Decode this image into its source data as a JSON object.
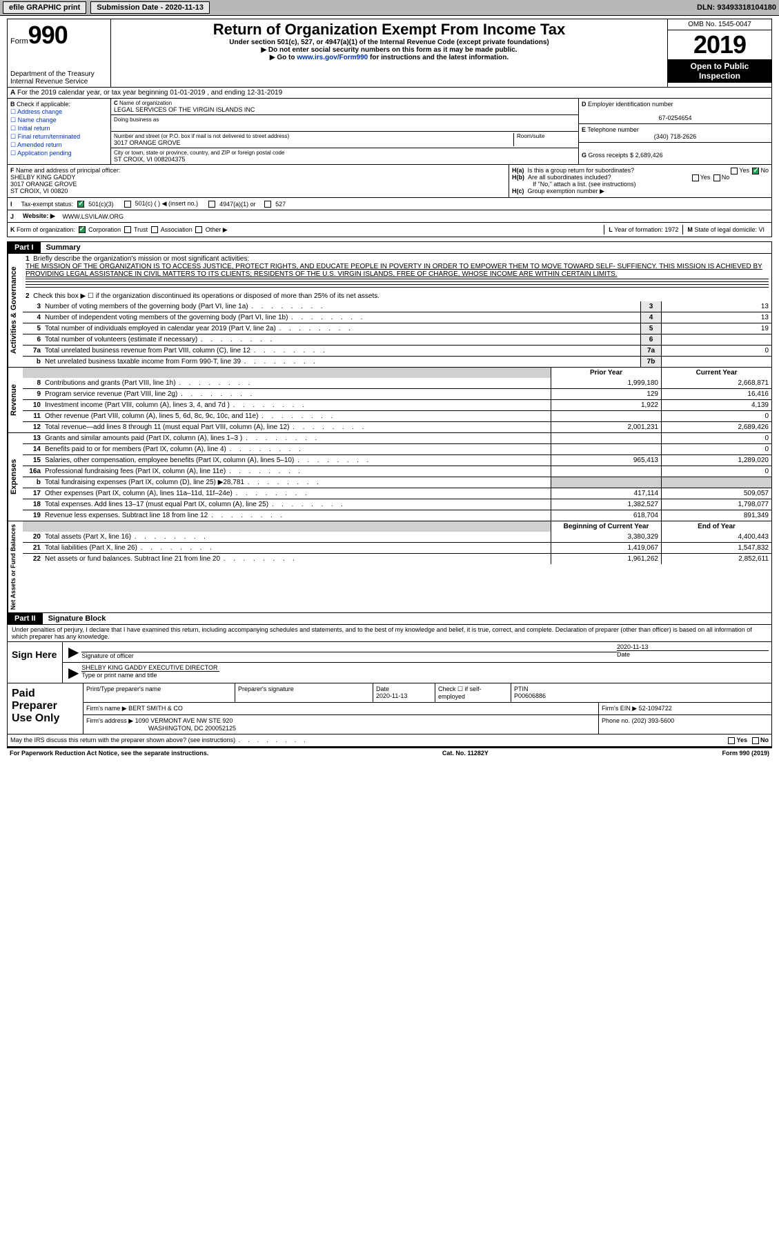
{
  "topbar": {
    "efile": "efile GRAPHIC print",
    "submission_label": "Submission Date - 2020-11-13",
    "dln": "DLN: 93493318104180"
  },
  "header": {
    "form_prefix": "Form",
    "form_number": "990",
    "dept1": "Department of the Treasury",
    "dept2": "Internal Revenue Service",
    "title": "Return of Organization Exempt From Income Tax",
    "subtitle": "Under section 501(c), 527, or 4947(a)(1) of the Internal Revenue Code (except private foundations)",
    "note1": "Do not enter social security numbers on this form as it may be made public.",
    "note2_pre": "Go to ",
    "note2_link": "www.irs.gov/Form990",
    "note2_post": " for instructions and the latest information.",
    "omb": "OMB No. 1545-0047",
    "year": "2019",
    "open": "Open to Public Inspection"
  },
  "A": {
    "text": "For the 2019 calendar year, or tax year beginning 01-01-2019    , and ending 12-31-2019"
  },
  "B": {
    "label": "Check if applicable:",
    "opts": [
      "Address change",
      "Name change",
      "Initial return",
      "Final return/terminated",
      "Amended return",
      "Application pending"
    ]
  },
  "C": {
    "name_label": "Name of organization",
    "name": "LEGAL SERVICES OF THE VIRGIN ISLANDS INC",
    "dba_label": "Doing business as",
    "addr_label": "Number and street (or P.O. box if mail is not delivered to street address)",
    "room_label": "Room/suite",
    "addr": "3017 ORANGE GROVE",
    "city_label": "City or town, state or province, country, and ZIP or foreign postal code",
    "city": "ST CROIX, VI  008204375"
  },
  "D": {
    "label": "Employer identification number",
    "ein": "67-0254654"
  },
  "E": {
    "label": "Telephone number",
    "phone": "(340) 718-2626"
  },
  "G": {
    "label": "Gross receipts $",
    "val": "2,689,426"
  },
  "F": {
    "label": "Name and address of principal officer:",
    "name": "SHELBY KING GADDY",
    "addr1": "3017 ORANGE GROVE",
    "addr2": "ST CROIX, VI  00820"
  },
  "H": {
    "a": "Is this a group return for subordinates?",
    "b": "Are all subordinates included?",
    "b_note": "If \"No,\" attach a list. (see instructions)",
    "c": "Group exemption number ▶",
    "yes": "Yes",
    "no": "No"
  },
  "I": {
    "label": "Tax-exempt status:",
    "o1": "501(c)(3)",
    "o2": "501(c) (  ) ◀ (insert no.)",
    "o3": "4947(a)(1) or",
    "o4": "527"
  },
  "J": {
    "label": "Website: ▶",
    "val": "WWW.LSVILAW.ORG"
  },
  "K": {
    "label": "Form of organization:",
    "o1": "Corporation",
    "o2": "Trust",
    "o3": "Association",
    "o4": "Other ▶"
  },
  "L": {
    "label": "Year of formation:",
    "val": "1972"
  },
  "M": {
    "label": "State of legal domicile:",
    "val": "VI"
  },
  "part1": {
    "tab": "Part I",
    "title": "Summary",
    "l1_label": "Briefly describe the organization's mission or most significant activities:",
    "l1_text": "THE MISSION OF THE ORGANIZATION IS TO ACCESS JUSTICE, PROTECT RIGHTS, AND EDUCATE PEOPLE IN POVERTY IN ORDER TO EMPOWER THEM TO MOVE TOWARD SELF- SUFFIENCY. THIS MISSION IS ACHIEVED BY PROVIDING LEGAL ASSISTANCE IN CIVIL MATTERS TO ITS CLIENTS; RESIDENTS OF THE U.S. VIRGIN ISLANDS, FREE OF CHARGE, WHOSE INCOME ARE WITHIN CERTAIN LIMITS.",
    "l2": "Check this box ▶ ☐  if the organization discontinued its operations or disposed of more than 25% of its net assets.",
    "lines_gov": [
      {
        "n": "3",
        "t": "Number of voting members of the governing body (Part VI, line 1a)",
        "box": "3",
        "v": "13"
      },
      {
        "n": "4",
        "t": "Number of independent voting members of the governing body (Part VI, line 1b)",
        "box": "4",
        "v": "13"
      },
      {
        "n": "5",
        "t": "Total number of individuals employed in calendar year 2019 (Part V, line 2a)",
        "box": "5",
        "v": "19"
      },
      {
        "n": "6",
        "t": "Total number of volunteers (estimate if necessary)",
        "box": "6",
        "v": ""
      },
      {
        "n": "7a",
        "t": "Total unrelated business revenue from Part VIII, column (C), line 12",
        "box": "7a",
        "v": "0"
      },
      {
        "n": "b",
        "t": "Net unrelated business taxable income from Form 990-T, line 39",
        "box": "7b",
        "v": ""
      }
    ],
    "colhdr_prior": "Prior Year",
    "colhdr_curr": "Current Year",
    "lines_rev": [
      {
        "n": "8",
        "t": "Contributions and grants (Part VIII, line 1h)",
        "p": "1,999,180",
        "c": "2,668,871"
      },
      {
        "n": "9",
        "t": "Program service revenue (Part VIII, line 2g)",
        "p": "129",
        "c": "16,416"
      },
      {
        "n": "10",
        "t": "Investment income (Part VIII, column (A), lines 3, 4, and 7d )",
        "p": "1,922",
        "c": "4,139"
      },
      {
        "n": "11",
        "t": "Other revenue (Part VIII, column (A), lines 5, 6d, 8c, 9c, 10c, and 11e)",
        "p": "",
        "c": "0"
      },
      {
        "n": "12",
        "t": "Total revenue—add lines 8 through 11 (must equal Part VIII, column (A), line 12)",
        "p": "2,001,231",
        "c": "2,689,426"
      }
    ],
    "lines_exp": [
      {
        "n": "13",
        "t": "Grants and similar amounts paid (Part IX, column (A), lines 1–3 )",
        "p": "",
        "c": "0"
      },
      {
        "n": "14",
        "t": "Benefits paid to or for members (Part IX, column (A), line 4)",
        "p": "",
        "c": "0"
      },
      {
        "n": "15",
        "t": "Salaries, other compensation, employee benefits (Part IX, column (A), lines 5–10)",
        "p": "965,413",
        "c": "1,289,020"
      },
      {
        "n": "16a",
        "t": "Professional fundraising fees (Part IX, column (A), line 11e)",
        "p": "",
        "c": "0"
      },
      {
        "n": "b",
        "t": "Total fundraising expenses (Part IX, column (D), line 25) ▶28,781",
        "p": "shade",
        "c": "shade"
      },
      {
        "n": "17",
        "t": "Other expenses (Part IX, column (A), lines 11a–11d, 11f–24e)",
        "p": "417,114",
        "c": "509,057"
      },
      {
        "n": "18",
        "t": "Total expenses. Add lines 13–17 (must equal Part IX, column (A), line 25)",
        "p": "1,382,527",
        "c": "1,798,077"
      },
      {
        "n": "19",
        "t": "Revenue less expenses. Subtract line 18 from line 12",
        "p": "618,704",
        "c": "891,349"
      }
    ],
    "colhdr_begin": "Beginning of Current Year",
    "colhdr_end": "End of Year",
    "lines_net": [
      {
        "n": "20",
        "t": "Total assets (Part X, line 16)",
        "p": "3,380,329",
        "c": "4,400,443"
      },
      {
        "n": "21",
        "t": "Total liabilities (Part X, line 26)",
        "p": "1,419,067",
        "c": "1,547,832"
      },
      {
        "n": "22",
        "t": "Net assets or fund balances. Subtract line 21 from line 20",
        "p": "1,961,262",
        "c": "2,852,611"
      }
    ],
    "vl_gov": "Activities & Governance",
    "vl_rev": "Revenue",
    "vl_exp": "Expenses",
    "vl_net": "Net Assets or Fund Balances"
  },
  "part2": {
    "tab": "Part II",
    "title": "Signature Block",
    "intro": "Under penalties of perjury, I declare that I have examined this return, including accompanying schedules and statements, and to the best of my knowledge and belief, it is true, correct, and complete. Declaration of preparer (other than officer) is based on all information of which preparer has any knowledge.",
    "sign_here": "Sign Here",
    "sig_of_officer": "Signature of officer",
    "sig_date": "2020-11-13",
    "date_lbl": "Date",
    "name_title": "SHELBY KING GADDY  EXECUTIVE DIRECTOR",
    "name_lbl": "Type or print name and title",
    "paid": "Paid Preparer Use Only",
    "pp_name_lbl": "Print/Type preparer's name",
    "pp_sig_lbl": "Preparer's signature",
    "pp_date_lbl": "Date",
    "pp_date": "2020-11-13",
    "pp_check": "Check ☐ if self-employed",
    "ptin_lbl": "PTIN",
    "ptin": "P00606886",
    "firm_name_lbl": "Firm's name    ▶",
    "firm_name": "BERT SMITH & CO",
    "firm_ein_lbl": "Firm's EIN ▶",
    "firm_ein": "52-1094722",
    "firm_addr_lbl": "Firm's address ▶",
    "firm_addr1": "1090 VERMONT AVE NW STE 920",
    "firm_addr2": "WASHINGTON, DC  200052125",
    "phone_lbl": "Phone no.",
    "phone": "(202) 393-5600"
  },
  "may": {
    "text": "May the IRS discuss this return with the preparer shown above? (see instructions)",
    "yes": "Yes",
    "no": "No"
  },
  "footer": {
    "left": "For Paperwork Reduction Act Notice, see the separate instructions.",
    "mid": "Cat. No. 11282Y",
    "right": "Form 990 (2019)"
  }
}
